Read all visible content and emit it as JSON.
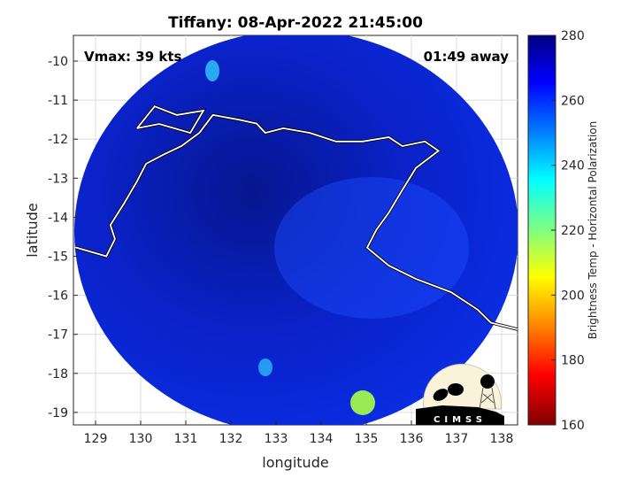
{
  "chart_data": {
    "type": "heatmap",
    "title": "Tiffany: 08-Apr-2022 21:45:00",
    "xlabel": "longitude",
    "ylabel": "latitude",
    "xlim": [
      128.5,
      138.35
    ],
    "ylim": [
      -19.3,
      -9.35
    ],
    "xticks": [
      129,
      130,
      131,
      132,
      133,
      134,
      135,
      136,
      137,
      138
    ],
    "yticks": [
      -10,
      -11,
      -12,
      -13,
      -14,
      -15,
      -16,
      -17,
      -18,
      -19
    ],
    "grid": true,
    "annotations": {
      "vmax": "Vmax: 39 kts",
      "time_away": "01:49 away"
    },
    "colorbar": {
      "label": "Brightness Temp - Horizontal Polarization",
      "range": [
        160,
        280
      ],
      "ticks": [
        160,
        180,
        200,
        220,
        240,
        260,
        280
      ],
      "colormap": "reversed jet"
    },
    "dominant_value_range": [
      250,
      280
    ],
    "coastline": [
      [
        128.55,
        -14.77
      ],
      [
        129.24,
        -15.0
      ],
      [
        129.43,
        -14.56
      ],
      [
        129.33,
        -14.2
      ],
      [
        129.63,
        -13.65
      ],
      [
        129.92,
        -13.08
      ],
      [
        130.12,
        -12.63
      ],
      [
        130.5,
        -12.4
      ],
      [
        130.9,
        -12.18
      ],
      [
        131.3,
        -11.84
      ],
      [
        131.6,
        -11.38
      ],
      [
        132.18,
        -11.5
      ],
      [
        132.57,
        -11.6
      ],
      [
        132.76,
        -11.84
      ],
      [
        133.16,
        -11.72
      ],
      [
        133.75,
        -11.84
      ],
      [
        134.33,
        -12.06
      ],
      [
        134.92,
        -12.06
      ],
      [
        135.5,
        -11.95
      ],
      [
        135.8,
        -12.18
      ],
      [
        136.3,
        -12.06
      ],
      [
        136.6,
        -12.3
      ],
      [
        136.1,
        -12.74
      ],
      [
        135.8,
        -13.3
      ],
      [
        135.5,
        -13.88
      ],
      [
        135.22,
        -14.33
      ],
      [
        135.02,
        -14.78
      ],
      [
        135.5,
        -15.24
      ],
      [
        136.1,
        -15.58
      ],
      [
        136.88,
        -15.92
      ],
      [
        137.47,
        -16.37
      ],
      [
        137.76,
        -16.7
      ],
      [
        138.35,
        -16.87
      ]
    ],
    "island": [
      [
        129.92,
        -11.72
      ],
      [
        130.31,
        -11.16
      ],
      [
        130.8,
        -11.38
      ],
      [
        131.39,
        -11.27
      ],
      [
        131.1,
        -11.84
      ],
      [
        130.41,
        -11.61
      ],
      [
        129.92,
        -11.72
      ]
    ]
  },
  "logo": {
    "text": "CIMSS"
  },
  "colors": {
    "swath_blue": "#0a1fe0",
    "coast": "#ffffff"
  }
}
